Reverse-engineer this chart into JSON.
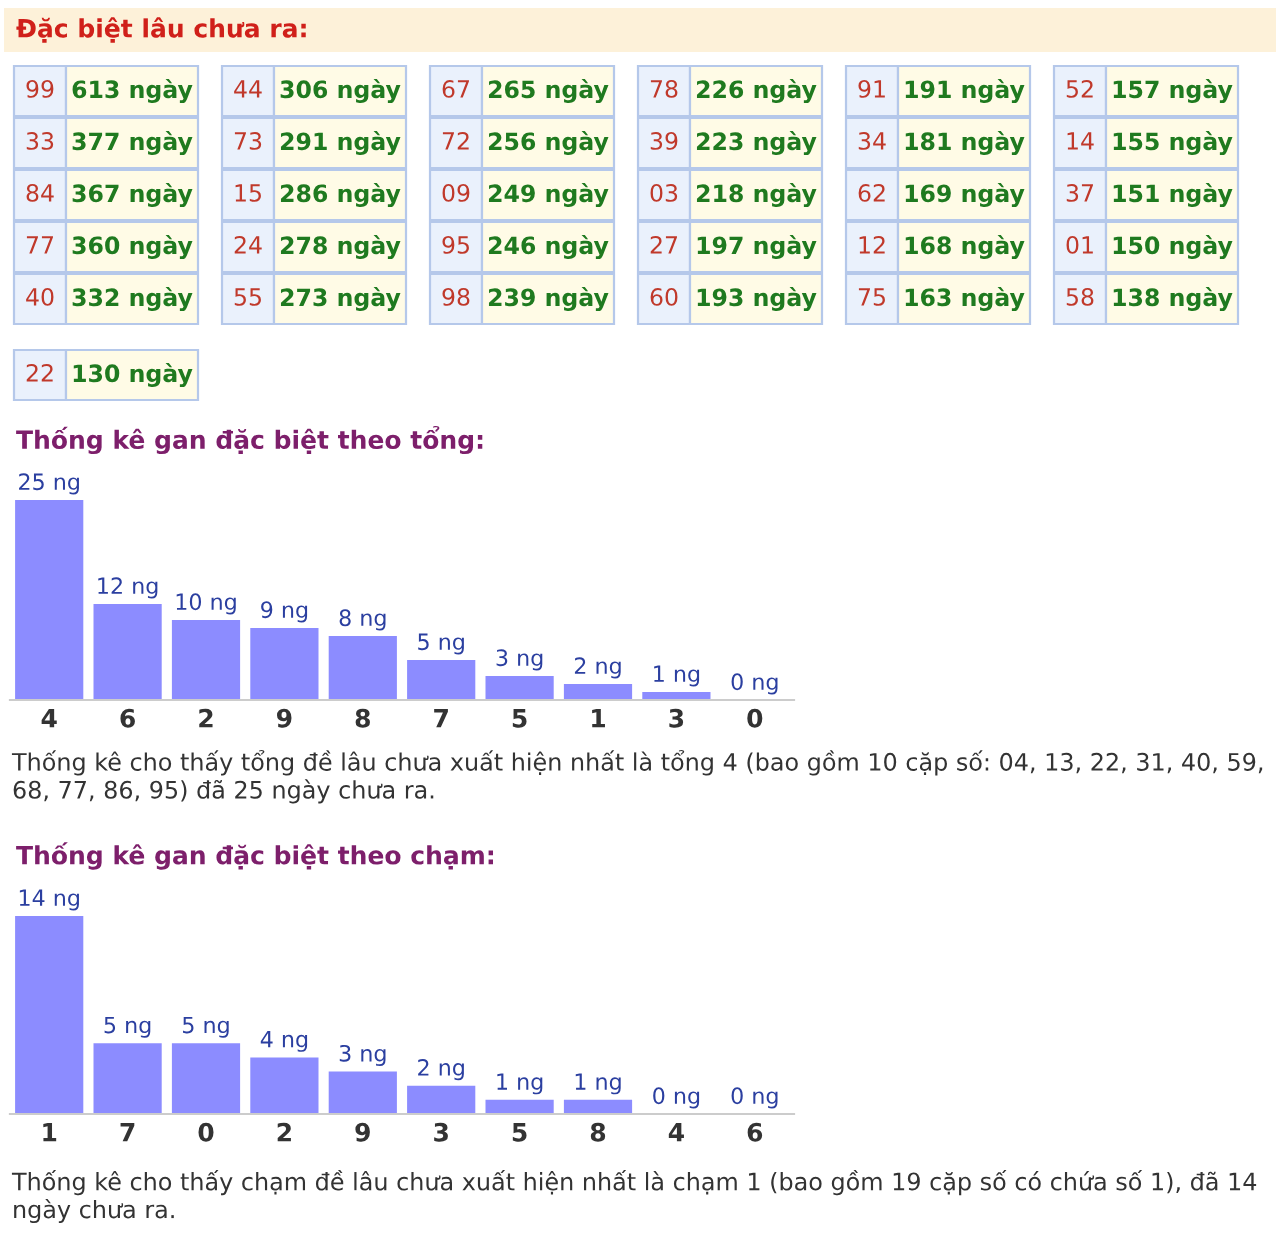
{
  "chart_data": [
    {
      "type": "other",
      "title": "Đặc biệt lâu chưa ra:",
      "categories": [
        "99",
        "33",
        "84",
        "77",
        "40",
        "44",
        "73",
        "15",
        "24",
        "55",
        "67",
        "72",
        "09",
        "95",
        "98",
        "78",
        "39",
        "03",
        "27",
        "60",
        "91",
        "34",
        "62",
        "12",
        "75",
        "52",
        "14",
        "37",
        "01",
        "58",
        "22"
      ],
      "values": [
        613,
        377,
        367,
        360,
        332,
        306,
        291,
        286,
        278,
        273,
        265,
        256,
        249,
        246,
        239,
        226,
        223,
        218,
        197,
        193,
        191,
        181,
        169,
        168,
        163,
        157,
        155,
        151,
        150,
        138,
        130
      ],
      "value_labels": [
        "613 ngày",
        "377 ngày",
        "367 ngày",
        "360 ngày",
        "332 ngày",
        "306 ngày",
        "291 ngày",
        "286 ngày",
        "278 ngày",
        "273 ngày",
        "265 ngày",
        "256 ngày",
        "249 ngày",
        "246 ngày",
        "239 ngày",
        "226 ngày",
        "223 ngày",
        "218 ngày",
        "197 ngày",
        "193 ngày",
        "191 ngày",
        "181 ngày",
        "169 ngày",
        "168 ngày",
        "163 ngày",
        "157 ngày",
        "155 ngày",
        "151 ngày",
        "150 ngày",
        "138 ngày",
        "130 ngày"
      ]
    },
    {
      "type": "bar",
      "title": "Thống kê gan đặc biệt theo tổng:",
      "color": "#8c8cff",
      "categories": [
        "4",
        "6",
        "2",
        "9",
        "8",
        "7",
        "5",
        "1",
        "3",
        "0"
      ],
      "values": [
        25,
        12,
        10,
        9,
        8,
        5,
        3,
        2,
        1,
        0
      ],
      "value_labels": [
        "25 ng",
        "12 ng",
        "10 ng",
        "9 ng",
        "8 ng",
        "5 ng",
        "3 ng",
        "2 ng",
        "1 ng",
        "0 ng"
      ],
      "annotations": [
        "Thống kê cho thấy tổng đề lâu chưa xuất hiện nhất là tổng 4 (bao gồm 10 cặp số: 04, 13, 22, 31, 40, 59, 68, 77, 86, 95) đã 25 ngày chưa ra."
      ]
    },
    {
      "type": "bar",
      "title": "Thống kê gan đặc biệt theo chạm:",
      "color": "#8c8cff",
      "categories": [
        "1",
        "7",
        "0",
        "2",
        "9",
        "3",
        "5",
        "8",
        "4",
        "6"
      ],
      "values": [
        14,
        5,
        5,
        4,
        3,
        2,
        1,
        1,
        0,
        0
      ],
      "value_labels": [
        "14 ng",
        "5 ng",
        "5 ng",
        "4 ng",
        "3 ng",
        "2 ng",
        "1 ng",
        "1 ng",
        "0 ng",
        "0 ng"
      ],
      "annotations": [
        "Thống kê cho thấy chạm đề lâu chưa xuất hiện nhất là chạm 1 (bao gồm 19 cặp số có chứa số 1), đã 14 ngày chưa ra."
      ]
    }
  ]
}
